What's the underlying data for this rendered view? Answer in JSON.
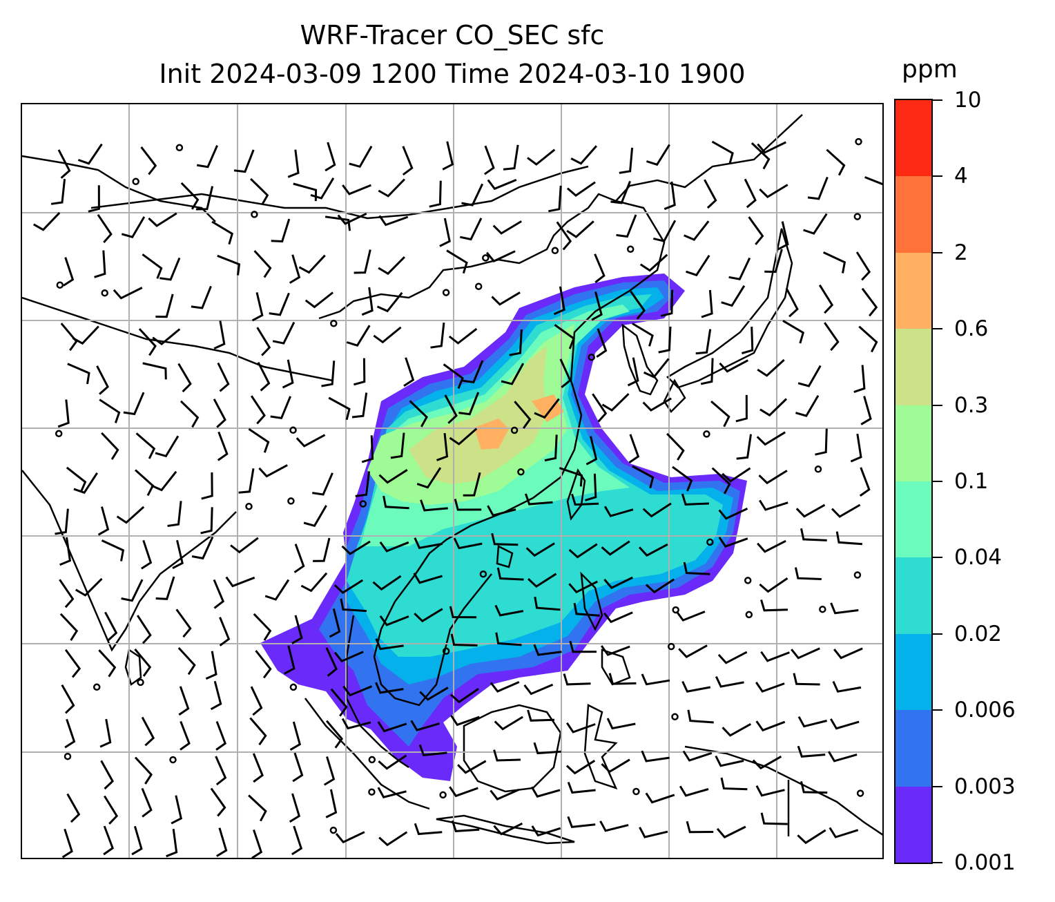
{
  "title": {
    "line1": "WRF-Tracer CO_SEC sfc",
    "line2": "Init 2024-03-09 1200 Time 2024-03-10 1900"
  },
  "colorbar": {
    "unit": "ppm",
    "levels": [
      "0.001",
      "0.003",
      "0.006",
      "0.02",
      "0.04",
      "0.1",
      "0.3",
      "0.6",
      "2",
      "4",
      "10"
    ],
    "colors": [
      "#6a2bfa",
      "#3273f0",
      "#04b1ea",
      "#2fdcd2",
      "#6bfbbd",
      "#9efb96",
      "#cde188",
      "#ffb060",
      "#ff7239",
      "#ff2a13"
    ]
  },
  "map": {
    "projection_grid": "on",
    "coastlines": "on",
    "wind_barbs": "on",
    "field": "CO_SEC tracer concentration (sfc)"
  }
}
